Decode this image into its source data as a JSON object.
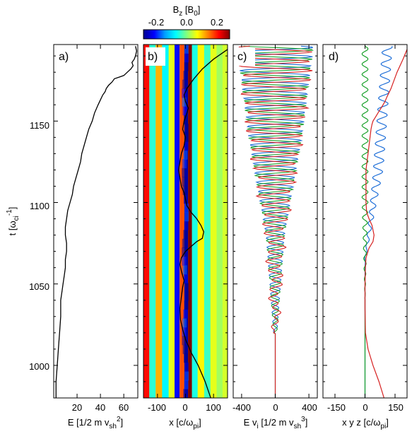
{
  "figure": {
    "colorbar": {
      "label_main": "B",
      "label_sub": "z",
      "label_rest": " [B",
      "label_sub2": "0",
      "label_end": "]",
      "ticks": [
        "-0.2",
        "0.0",
        "0.2"
      ],
      "range": [
        -0.3,
        0.3
      ],
      "colormap": [
        "#00008f",
        "#0000ff",
        "#00a0ff",
        "#00ffff",
        "#80ff80",
        "#ffff00",
        "#ff8000",
        "#ff0000",
        "#800000"
      ]
    },
    "y_axis": {
      "label_main": "t [ω",
      "label_sub": "ci",
      "label_sup": "-1",
      "label_end": "]",
      "ticks": [
        "1000",
        "1050",
        "1100",
        "1150"
      ]
    },
    "panels": [
      {
        "id": "a",
        "label": "a)",
        "xlabel": "E [1/2 m v",
        "xlabel_sub": "sh",
        "xlabel_sup": "2",
        "xlabel_end": "]",
        "xticks": [
          "20",
          "40",
          "60"
        ]
      },
      {
        "id": "b",
        "label": "b)",
        "xlabel": "x [c/ω",
        "xlabel_sub": "pi",
        "xlabel_end": "]",
        "xticks": [
          "-100",
          "0",
          "100"
        ]
      },
      {
        "id": "c",
        "label": "c)",
        "xlabel": "E v",
        "xlabel_sub": "i",
        "xlabel_mid": " [1/2 m v",
        "xlabel_sub2": "sh",
        "xlabel_sup": "3",
        "xlabel_end": "]",
        "xticks": [
          "-400",
          "0",
          "400"
        ]
      },
      {
        "id": "d",
        "label": "d)",
        "xlabel": "x y z [c/ω",
        "xlabel_sub": "pi",
        "xlabel_end": "]",
        "xticks": [
          "-150",
          "0",
          "150"
        ]
      }
    ]
  },
  "chart_data": [
    {
      "type": "line",
      "panel": "a",
      "xlabel": "E [1/2 m vsh2]",
      "ylabel": "t [ωci-1]",
      "xlim": [
        0,
        72
      ],
      "ylim": [
        980,
        1197
      ],
      "series": [
        {
          "color": "#000000",
          "x": [
            2,
            2,
            3,
            4,
            5,
            6,
            6,
            7,
            8,
            9,
            10,
            10,
            11,
            11,
            10,
            10,
            11,
            12,
            14,
            16,
            17,
            19,
            21,
            23,
            24,
            26,
            28,
            30,
            33,
            35,
            38,
            40,
            42,
            44,
            45,
            47,
            50,
            52,
            56,
            60,
            63,
            66,
            68,
            67,
            69,
            70,
            71,
            70
          ],
          "y": [
            980,
            990,
            1000,
            1010,
            1020,
            1030,
            1040,
            1045,
            1050,
            1055,
            1060,
            1065,
            1070,
            1075,
            1080,
            1085,
            1090,
            1095,
            1100,
            1105,
            1110,
            1115,
            1120,
            1125,
            1130,
            1135,
            1140,
            1145,
            1150,
            1155,
            1160,
            1163,
            1166,
            1168,
            1170,
            1172,
            1174,
            1176,
            1177,
            1178,
            1180,
            1182,
            1184,
            1186,
            1188,
            1190,
            1193,
            1196
          ]
        }
      ]
    },
    {
      "type": "heatmap",
      "panel": "b",
      "xlabel": "x [c/ωpi]",
      "xlim": [
        -150,
        150
      ],
      "ylim": [
        980,
        1197
      ],
      "stripes": [
        {
          "x": -140,
          "value": 0.22
        },
        {
          "x": -118,
          "value": -0.05
        },
        {
          "x": -95,
          "value": 0.12
        },
        {
          "x": -72,
          "value": -0.08
        },
        {
          "x": -48,
          "value": 0.06
        },
        {
          "x": -30,
          "value": -0.22
        },
        {
          "x": -12,
          "value": 0.18
        },
        {
          "x": 4,
          "value": -0.28
        },
        {
          "x": 14,
          "value": 0.3
        },
        {
          "x": 32,
          "value": -0.06
        },
        {
          "x": 55,
          "value": 0.08
        },
        {
          "x": 78,
          "value": -0.04
        },
        {
          "x": 100,
          "value": 0.06
        },
        {
          "x": 122,
          "value": 0.02
        },
        {
          "x": 142,
          "value": 0.05
        }
      ],
      "series": [
        {
          "color": "#000000",
          "x": [
            90,
            70,
            45,
            20,
            0,
            -10,
            -18,
            -20,
            -15,
            -10,
            -5,
            -15,
            -20,
            -15,
            0,
            20,
            40,
            60,
            65,
            55,
            40,
            20,
            5,
            0,
            -5,
            -15,
            -20,
            -25,
            -20,
            -15,
            -5,
            0,
            -10,
            -5,
            5,
            10,
            0,
            -5,
            5,
            30,
            60,
            100,
            150
          ],
          "y": [
            980,
            990,
            1000,
            1008,
            1016,
            1022,
            1028,
            1035,
            1042,
            1048,
            1052,
            1058,
            1062,
            1066,
            1070,
            1073,
            1076,
            1078,
            1082,
            1086,
            1090,
            1094,
            1098,
            1102,
            1106,
            1110,
            1115,
            1120,
            1125,
            1130,
            1135,
            1140,
            1145,
            1150,
            1155,
            1158,
            1162,
            1166,
            1170,
            1176,
            1182,
            1188,
            1194
          ]
        }
      ]
    },
    {
      "type": "line",
      "panel": "c",
      "xlabel": "E vi [1/2 m vsh3]",
      "xlim": [
        -500,
        500
      ],
      "ylim": [
        980,
        1197
      ],
      "series": [
        {
          "color": "#1f6fd8"
        },
        {
          "color": "#1aa12a"
        },
        {
          "color": "#d62020"
        }
      ]
    },
    {
      "type": "line",
      "panel": "d",
      "xlabel": "x y z [c/ωpi]",
      "xlim": [
        -210,
        210
      ],
      "ylim": [
        980,
        1197
      ],
      "series": [
        {
          "color": "#1f6fd8"
        },
        {
          "color": "#1aa12a"
        },
        {
          "color": "#d62020",
          "x": [
            95,
            70,
            40,
            15,
            2,
            0,
            0,
            2,
            5,
            20,
            40,
            45,
            35,
            20,
            8,
            5,
            5,
            5,
            10,
            15,
            20,
            25,
            30,
            35,
            40,
            50,
            60,
            70,
            80,
            90,
            100,
            110,
            130,
            160,
            190,
            210
          ],
          "y": [
            980,
            990,
            1000,
            1010,
            1020,
            1035,
            1050,
            1060,
            1066,
            1072,
            1076,
            1080,
            1086,
            1090,
            1094,
            1100,
            1110,
            1120,
            1125,
            1130,
            1135,
            1140,
            1145,
            1148,
            1150,
            1152,
            1154,
            1156,
            1158,
            1160,
            1162,
            1165,
            1170,
            1180,
            1188,
            1194
          ]
        }
      ]
    }
  ]
}
